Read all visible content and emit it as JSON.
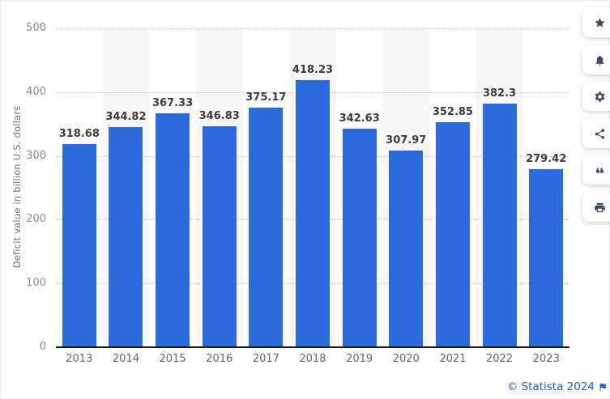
{
  "chart_data": {
    "type": "bar",
    "title": "",
    "categories": [
      "2013",
      "2014",
      "2015",
      "2016",
      "2017",
      "2018",
      "2019",
      "2020",
      "2021",
      "2022",
      "2023"
    ],
    "values": [
      318.68,
      344.82,
      367.33,
      346.83,
      375.17,
      418.23,
      342.63,
      307.97,
      352.85,
      382.3,
      279.42
    ],
    "value_labels": [
      "318.68",
      "344.82",
      "367.33",
      "346.83",
      "375.17",
      "418.23",
      "342.63",
      "307.97",
      "352.85",
      "382.3",
      "279.42"
    ],
    "xlabel": "",
    "ylabel": "Deficit value in billion U.S. dollars",
    "ylim": [
      0,
      500
    ],
    "yticks": [
      0,
      100,
      200,
      300,
      400,
      500
    ],
    "grid": "horizontal-dotted",
    "legend": "none",
    "layout_hints": {
      "alternating_column_bands": true,
      "band_color": "#f7f7f7",
      "bar_color": "#2d6bdd",
      "grid_color": "#c9c9c9",
      "axis_color": "#1c1c1c",
      "value_label_color": "#3c3c3c",
      "tick_label_color": "#8c8c8c",
      "category_label_color": "#666666"
    }
  },
  "sidebar": {
    "buttons": [
      {
        "name": "favorite",
        "icon": "star-icon"
      },
      {
        "name": "notifications",
        "icon": "bell-icon"
      },
      {
        "name": "settings",
        "icon": "gear-icon"
      },
      {
        "name": "share",
        "icon": "share-icon"
      },
      {
        "name": "cite",
        "icon": "quote-icon"
      },
      {
        "name": "print",
        "icon": "printer-icon"
      }
    ]
  },
  "footer": {
    "attribution": "© Statista 2024",
    "icon": "flag-icon",
    "link_color": "#1f62c5"
  }
}
